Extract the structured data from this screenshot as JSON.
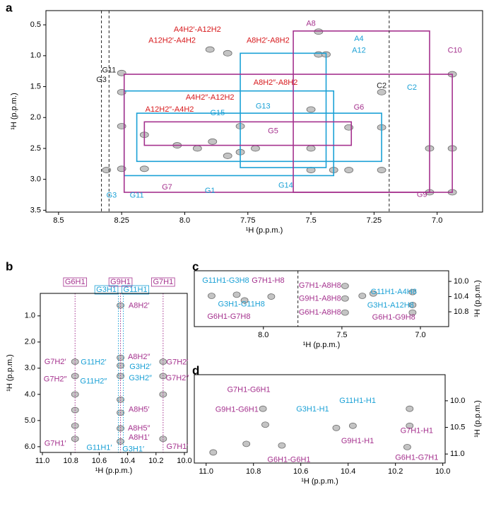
{
  "chart_data": [
    {
      "type": "contour",
      "panel": "a",
      "xlabel": "¹H (p.p.m.)",
      "ylabel": "¹H (p.p.m.)",
      "xlim": [
        8.55,
        6.82
      ],
      "ylim": [
        0.27,
        3.53
      ],
      "xticks": [
        8.5,
        8.25,
        {
          "value": 8,
          "label": "8.0"
        },
        7.75,
        7.5,
        7.25,
        {
          "value": 7,
          "label": "7.0"
        }
      ],
      "yticks": [
        0.5,
        {
          "value": 1,
          "label": "1.0"
        },
        1.5,
        {
          "value": 2,
          "label": "2.0"
        },
        2.5,
        {
          "value": 3,
          "label": "3.0"
        },
        3.5
      ],
      "peaks": {
        "x": [
          8.25,
          8.25,
          8.25,
          8.25,
          8.31,
          8.16,
          8.16,
          8.03,
          7.95,
          7.89,
          7.83,
          7.78,
          7.72,
          7.78,
          7.83,
          7.9,
          7.47,
          7.47,
          7.44,
          7.5,
          7.5,
          7.5,
          7.41,
          7.35,
          7.35,
          7.22,
          7.22,
          7.22,
          7.03,
          7.03,
          6.94,
          6.94,
          6.94
        ],
        "y": [
          1.28,
          1.59,
          2.14,
          2.83,
          2.85,
          2.28,
          2.83,
          2.45,
          2.5,
          2.39,
          2.62,
          2.56,
          2.5,
          2.14,
          0.96,
          0.9,
          0.61,
          0.98,
          0.98,
          1.87,
          2.5,
          2.85,
          2.85,
          2.85,
          2.16,
          1.59,
          2.16,
          2.85,
          2.5,
          3.21,
          1.3,
          2.5,
          3.21
        ]
      },
      "boxes": [
        {
          "x": [
            8.24,
            7.41
          ],
          "y": [
            1.57,
            2.94
          ],
          "color": "#1ba1d6"
        },
        {
          "x": [
            7.78,
            7.44
          ],
          "y": [
            0.96,
            2.81
          ],
          "color": "#1ba1d6"
        },
        {
          "x": [
            8.19,
            7.22
          ],
          "y": [
            1.93,
            2.71
          ],
          "color": "#1ba1d6"
        },
        {
          "x": [
            8.24,
            6.94
          ],
          "y": [
            1.3,
            3.21
          ],
          "color": "#a5328e"
        },
        {
          "x": [
            7.57,
            7.03
          ],
          "y": [
            0.6,
            3.21
          ],
          "color": "#a5328e"
        },
        {
          "x": [
            8.16,
            7.34
          ],
          "y": [
            2.07,
            2.45
          ],
          "color": "#a5328e"
        }
      ],
      "lines": [
        {
          "x": 8.33,
          "color": "#222222"
        },
        {
          "x": 8.3,
          "color": "#222222"
        },
        {
          "x": 7.19,
          "color": "#222222"
        }
      ],
      "labels": [
        {
          "text": "A4H2′-A12H2",
          "x": 7.95,
          "y": 0.58,
          "color": "#d7191c"
        },
        {
          "text": "A8H2′-A8H2",
          "x": 7.67,
          "y": 0.76,
          "color": "#d7191c"
        },
        {
          "text": "A12H2′-A4H2",
          "x": 8.05,
          "y": 0.76,
          "color": "#d7191c"
        },
        {
          "text": "A8",
          "x": 7.5,
          "y": 0.48,
          "color": "#a5328e"
        },
        {
          "text": "A4",
          "x": 7.31,
          "y": 0.73,
          "color": "#1ba1d6"
        },
        {
          "text": "A12",
          "x": 7.31,
          "y": 0.92,
          "color": "#1ba1d6"
        },
        {
          "text": "C10",
          "x": 6.93,
          "y": 0.92,
          "color": "#a5328e"
        },
        {
          "text": "G11",
          "x": 8.3,
          "y": 1.24,
          "color": "#222222"
        },
        {
          "text": "G3",
          "x": 8.33,
          "y": 1.39,
          "color": "#222222"
        },
        {
          "text": "A8H2″-A8H2",
          "x": 7.64,
          "y": 1.44,
          "color": "#d7191c"
        },
        {
          "text": "A4H2″-A12H2",
          "x": 7.9,
          "y": 1.68,
          "color": "#d7191c"
        },
        {
          "text": "C2",
          "x": 7.22,
          "y": 1.49,
          "color": "#222222"
        },
        {
          "text": "C2",
          "x": 7.1,
          "y": 1.52,
          "color": "#1ba1d6"
        },
        {
          "text": "A12H2″-A4H2",
          "x": 8.06,
          "y": 1.87,
          "color": "#d7191c"
        },
        {
          "text": "G15",
          "x": 7.87,
          "y": 1.93,
          "color": "#1ba1d6"
        },
        {
          "text": "G13",
          "x": 7.69,
          "y": 1.82,
          "color": "#1ba1d6"
        },
        {
          "text": "G6",
          "x": 7.31,
          "y": 1.84,
          "color": "#a5328e"
        },
        {
          "text": "G5",
          "x": 7.65,
          "y": 2.22,
          "color": "#a5328e"
        },
        {
          "text": "G7",
          "x": 8.07,
          "y": 3.13,
          "color": "#a5328e"
        },
        {
          "text": "G3",
          "x": 8.29,
          "y": 3.26,
          "color": "#1ba1d6"
        },
        {
          "text": "G11",
          "x": 8.19,
          "y": 3.26,
          "color": "#1ba1d6"
        },
        {
          "text": "G1",
          "x": 7.9,
          "y": 3.19,
          "color": "#1ba1d6"
        },
        {
          "text": "G14",
          "x": 7.6,
          "y": 3.1,
          "color": "#1ba1d6"
        },
        {
          "text": "G9",
          "x": 7.06,
          "y": 3.25,
          "color": "#a5328e"
        }
      ]
    },
    {
      "type": "contour",
      "panel": "b",
      "xlabel": "¹H (p.p.m.)",
      "ylabel": "¹H (p.p.m.)",
      "xlim": [
        11.015,
        9.98
      ],
      "ylim": [
        0.14,
        6.22
      ],
      "xticks": [
        {
          "value": 11,
          "label": "11.0"
        },
        10.8,
        10.6,
        10.4,
        10.2,
        {
          "value": 10,
          "label": "10.0"
        }
      ],
      "yticks": [
        {
          "value": 1,
          "label": "1.0"
        },
        {
          "value": 2,
          "label": "2.0"
        },
        {
          "value": 3,
          "label": "3.0"
        },
        {
          "value": 4,
          "label": "4.0"
        },
        {
          "value": 5,
          "label": "5.0"
        },
        {
          "value": 6,
          "label": "6.0"
        }
      ],
      "peaks": {
        "x": [
          10.77,
          10.77,
          10.77,
          10.77,
          10.77,
          10.77,
          10.45,
          10.45,
          10.45,
          10.45,
          10.45,
          10.45,
          10.45,
          10.45,
          10.15,
          10.15,
          10.15,
          10.15
        ],
        "y": [
          2.75,
          3.3,
          4.0,
          4.6,
          5.2,
          5.7,
          0.6,
          2.6,
          2.9,
          3.3,
          4.2,
          4.7,
          5.3,
          5.8,
          2.75,
          3.3,
          4.0,
          5.7
        ]
      },
      "boxes": [],
      "lines": [
        {
          "label": "G6H1",
          "x": 10.77,
          "color": "#a5328e"
        },
        {
          "label": "G9H1",
          "x": 10.45,
          "color": "#a5328e"
        },
        {
          "label": "G3H1",
          "x": 10.465,
          "color": "#1ba1d6"
        },
        {
          "label": "G11H1",
          "x": 10.43,
          "color": "#1ba1d6"
        },
        {
          "label": "G7H1",
          "x": 10.15,
          "color": "#a5328e"
        }
      ],
      "labels": [
        {
          "text": "A8H2′",
          "x": 10.32,
          "y": 0.62,
          "color": "#a5328e"
        },
        {
          "text": "A8H2″",
          "x": 10.32,
          "y": 2.57,
          "color": "#a5328e"
        },
        {
          "text": "G3H2′",
          "x": 10.31,
          "y": 2.95,
          "color": "#1ba1d6"
        },
        {
          "text": "G3H2″",
          "x": 10.31,
          "y": 3.38,
          "color": "#1ba1d6"
        },
        {
          "text": "A8H5′",
          "x": 10.32,
          "y": 4.59,
          "color": "#a5328e"
        },
        {
          "text": "A8H5″",
          "x": 10.32,
          "y": 5.3,
          "color": "#a5328e"
        },
        {
          "text": "A8H1′",
          "x": 10.32,
          "y": 5.65,
          "color": "#a5328e"
        },
        {
          "text": "G3H1′",
          "x": 10.36,
          "y": 6.1,
          "color": "#1ba1d6"
        },
        {
          "text": "G11H1′",
          "x": 10.6,
          "y": 6.05,
          "color": "#1ba1d6"
        },
        {
          "text": "G11H2′",
          "x": 10.64,
          "y": 2.78,
          "color": "#1ba1d6"
        },
        {
          "text": "G11H2″",
          "x": 10.64,
          "y": 3.51,
          "color": "#1ba1d6"
        },
        {
          "text": "G7H2′",
          "x": 10.91,
          "y": 2.76,
          "color": "#a5328e"
        },
        {
          "text": "G7H2″",
          "x": 10.91,
          "y": 3.43,
          "color": "#a5328e"
        },
        {
          "text": "G7H2′",
          "x": 10.05,
          "y": 2.78,
          "color": "#a5328e"
        },
        {
          "text": "G7H2″",
          "x": 10.05,
          "y": 3.38,
          "color": "#a5328e"
        },
        {
          "text": "G7H1′",
          "x": 10.91,
          "y": 5.89,
          "color": "#a5328e"
        },
        {
          "text": "G7H1′",
          "x": 10.05,
          "y": 6.0,
          "color": "#a5328e"
        }
      ]
    },
    {
      "type": "contour",
      "panel": "c",
      "xlabel": "¹H (p.p.m.)",
      "ylabel": "¹H (p.p.m.)",
      "xlim": [
        8.44,
        6.82
      ],
      "ylim": [
        9.72,
        11.19
      ],
      "xticks": [
        {
          "value": 8,
          "label": "8.0"
        },
        7.5,
        {
          "value": 7,
          "label": "7.0"
        }
      ],
      "yticks": [
        {
          "value": 10,
          "label": "10.0"
        },
        10.4,
        10.8
      ],
      "peaks": {
        "x": [
          8.33,
          8.17,
          8.12,
          7.95,
          7.48,
          7.48,
          7.48,
          7.37,
          7.3,
          7.05,
          7.05,
          7.05
        ],
        "y": [
          10.38,
          10.35,
          10.5,
          10.4,
          10.12,
          10.45,
          10.82,
          10.38,
          10.32,
          10.28,
          10.62,
          10.82
        ]
      },
      "boxes": [],
      "lines": [
        {
          "x": 7.78,
          "color": "#222222"
        }
      ],
      "labels": [
        {
          "text": "G11H1-G3H8",
          "x": 8.24,
          "y": 9.98,
          "color": "#1ba1d6"
        },
        {
          "text": "G7H1-H8",
          "x": 7.97,
          "y": 9.98,
          "color": "#a5328e"
        },
        {
          "text": "G3H1-G11H8",
          "x": 8.14,
          "y": 10.61,
          "color": "#1ba1d6"
        },
        {
          "text": "G6H1-G7H8",
          "x": 8.22,
          "y": 10.93,
          "color": "#a5328e"
        },
        {
          "text": "G7H1-A8H8",
          "x": 7.64,
          "y": 10.11,
          "color": "#a5328e"
        },
        {
          "text": "G9H1-A8H8",
          "x": 7.64,
          "y": 10.46,
          "color": "#a5328e"
        },
        {
          "text": "G6H1-A8H8",
          "x": 7.64,
          "y": 10.82,
          "color": "#a5328e"
        },
        {
          "text": "G11H1-A4H8",
          "x": 7.17,
          "y": 10.28,
          "color": "#1ba1d6"
        },
        {
          "text": "G3H1-A12H8",
          "x": 7.19,
          "y": 10.63,
          "color": "#1ba1d6"
        },
        {
          "text": "G6H1-G9H8",
          "x": 7.17,
          "y": 10.95,
          "color": "#a5328e"
        }
      ]
    },
    {
      "type": "contour",
      "panel": "d",
      "xlabel": "¹H (p.p.m.)",
      "ylabel": "¹H (p.p.m.)",
      "xlim": [
        11.05,
        9.99
      ],
      "ylim": [
        9.51,
        11.17
      ],
      "xticks": [
        {
          "value": 11,
          "label": "11.0"
        },
        10.8,
        10.6,
        10.4,
        10.2,
        {
          "value": 10,
          "label": "10.0"
        }
      ],
      "yticks": [
        {
          "value": 10,
          "label": "10.0"
        },
        10.5,
        {
          "value": 11,
          "label": "11.0"
        }
      ],
      "peaks": {
        "x": [
          10.76,
          10.75,
          10.97,
          10.83,
          10.68,
          10.45,
          10.38,
          10.14,
          10.14,
          10.15
        ],
        "y": [
          10.15,
          10.45,
          10.97,
          10.81,
          10.84,
          10.51,
          10.47,
          10.15,
          10.47,
          10.87
        ]
      },
      "boxes": [],
      "lines": [],
      "labels": [
        {
          "text": "G7H1-G6H1",
          "x": 10.82,
          "y": 9.8,
          "color": "#a5328e"
        },
        {
          "text": "G9H1-G6H1",
          "x": 10.87,
          "y": 10.17,
          "color": "#a5328e"
        },
        {
          "text": "G3H1-H1",
          "x": 10.55,
          "y": 10.16,
          "color": "#1ba1d6"
        },
        {
          "text": "G11H1-H1",
          "x": 10.36,
          "y": 10.0,
          "color": "#1ba1d6"
        },
        {
          "text": "G9H1-H1",
          "x": 10.36,
          "y": 10.76,
          "color": "#a5328e"
        },
        {
          "text": "G7H1-H1",
          "x": 10.11,
          "y": 10.57,
          "color": "#a5328e"
        },
        {
          "text": "G6H1-G6H1",
          "x": 10.65,
          "y": 11.11,
          "color": "#a5328e"
        },
        {
          "text": "G6H1-G7H1",
          "x": 10.11,
          "y": 11.07,
          "color": "#a5328e"
        }
      ]
    }
  ]
}
